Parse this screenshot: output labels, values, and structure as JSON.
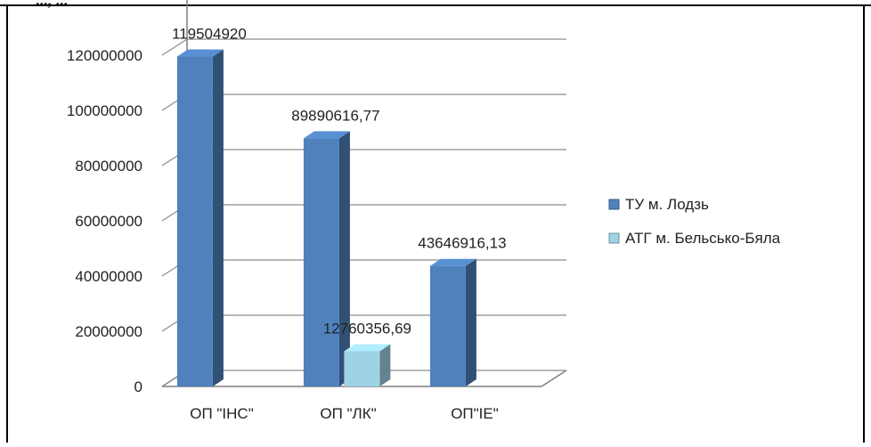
{
  "page": {
    "clipped_text": "..., ..."
  },
  "chart_data": {
    "type": "bar",
    "categories": [
      "ОП \"ІНС\"",
      "ОП \"ЛК\"",
      "ОП\"ІЕ\""
    ],
    "series": [
      {
        "name": "ТУ м. Лодзь",
        "values": [
          119504920,
          89890616.77,
          43646916.13
        ],
        "labels": [
          "119504920",
          "89890616,77",
          "43646916,13"
        ],
        "color": "#4F81BD"
      },
      {
        "name": "АТГ м. Бельсько-Бяла",
        "values": [
          null,
          12760356.69,
          null
        ],
        "labels": [
          "",
          "12760356,69",
          ""
        ],
        "color": "#9ED3E6"
      }
    ],
    "y_ticks": [
      "0",
      "20000000",
      "40000000",
      "60000000",
      "80000000",
      "100000000",
      "120000000"
    ],
    "ylim": [
      0,
      140000000
    ],
    "grid": true,
    "legend_position": "right",
    "style": "3d-column"
  }
}
